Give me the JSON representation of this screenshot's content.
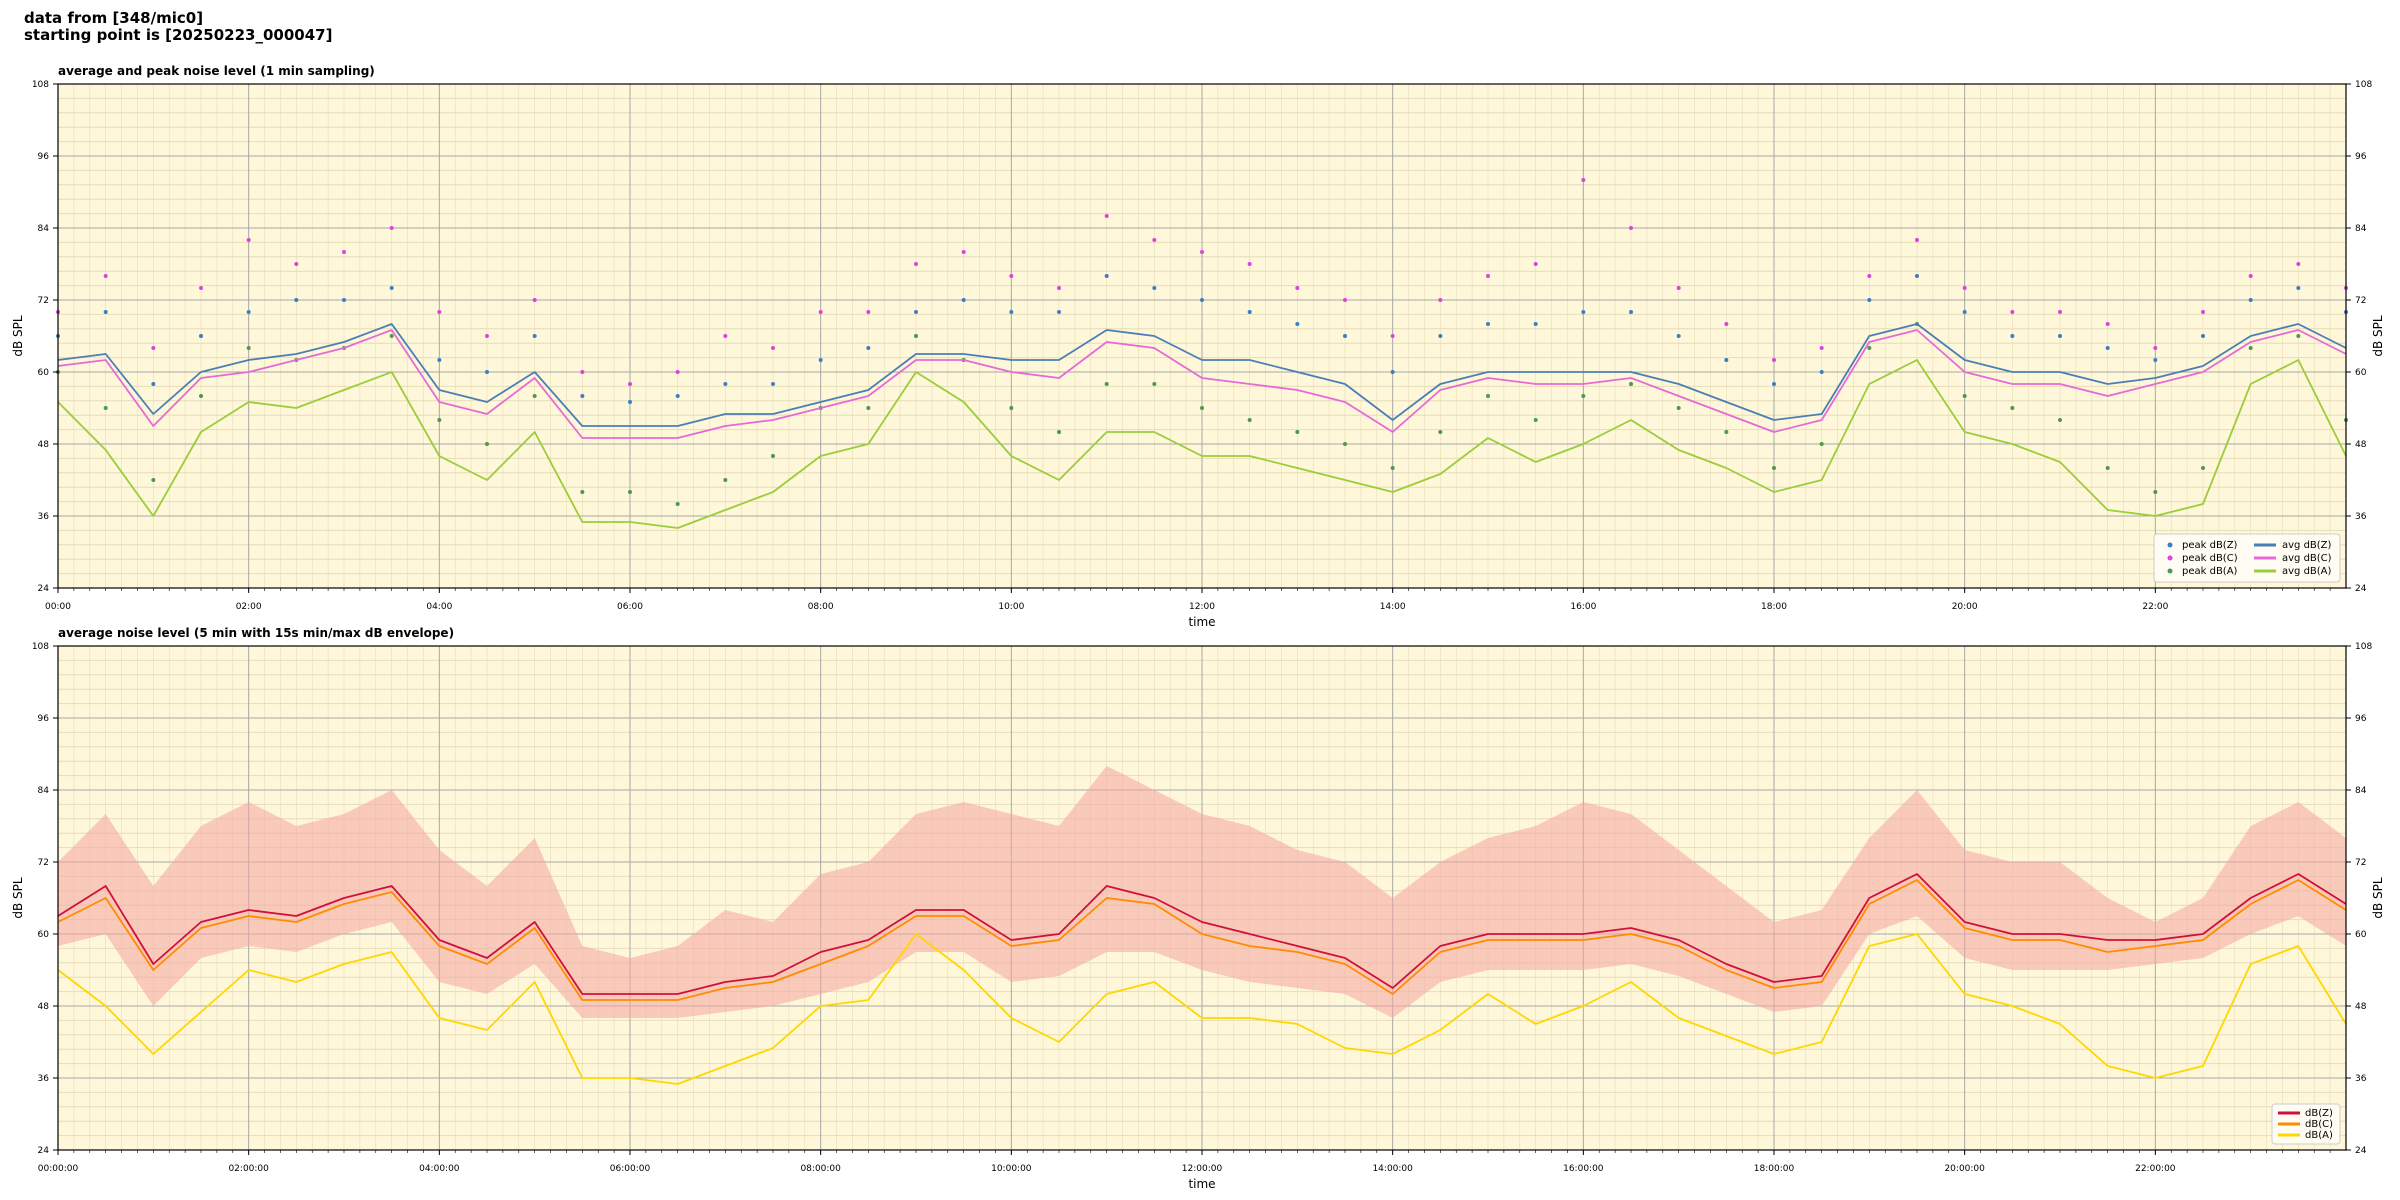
{
  "header": {
    "line1": "data from [348/mic0]",
    "line2": "starting point is [20250223_000047]"
  },
  "colors": {
    "plot_bg": "#fff7d9",
    "major_grid": "#a8a8a8",
    "minor_grid": "#e6dcb8",
    "avg_z": "#4a7fb5",
    "avg_c": "#e66ad6",
    "avg_a": "#9acd3a",
    "peak_z": "#3a7ec8",
    "peak_c": "#e040e0",
    "peak_a": "#4c9a4c",
    "z": "#d0103a",
    "c": "#ff8c00",
    "a": "#ffd700",
    "envelope": "#f4a6a0"
  },
  "chart_data": [
    {
      "type": "line",
      "id": "top",
      "title": "average and peak noise level (1 min sampling)",
      "xlabel": "time",
      "ylabel": "dB SPL",
      "ylabel_right": "dB SPL",
      "xlim": [
        0,
        24
      ],
      "ylim": [
        24,
        108
      ],
      "yticks": [
        "24",
        "36",
        "48",
        "60",
        "72",
        "84",
        "96",
        "108"
      ],
      "xticks": [
        "00:00",
        "02:00",
        "04:00",
        "06:00",
        "08:00",
        "10:00",
        "12:00",
        "14:00",
        "16:00",
        "18:00",
        "20:00",
        "22:00"
      ],
      "grid": true,
      "legend_position": "bottom-right",
      "legend": [
        {
          "label": "peak dB(Z)",
          "kind": "marker",
          "color_key": "peak_z"
        },
        {
          "label": "peak dB(C)",
          "kind": "marker",
          "color_key": "peak_c"
        },
        {
          "label": "peak dB(A)",
          "kind": "marker",
          "color_key": "peak_a"
        },
        {
          "label": "avg dB(Z)",
          "kind": "line",
          "color_key": "avg_z"
        },
        {
          "label": "avg dB(C)",
          "kind": "line",
          "color_key": "avg_c"
        },
        {
          "label": "avg dB(A)",
          "kind": "line",
          "color_key": "avg_a"
        }
      ],
      "x": [
        0,
        0.5,
        1,
        1.5,
        2,
        2.5,
        3,
        3.5,
        4,
        4.5,
        5,
        5.5,
        6,
        6.5,
        7,
        7.5,
        8,
        8.5,
        9,
        9.5,
        10,
        10.5,
        11,
        11.5,
        12,
        12.5,
        13,
        13.5,
        14,
        14.5,
        15,
        15.5,
        16,
        16.5,
        17,
        17.5,
        18,
        18.5,
        19,
        19.5,
        20,
        20.5,
        21,
        21.5,
        22,
        22.5,
        23,
        23.5,
        24
      ],
      "series": [
        {
          "name": "avg dB(Z)",
          "color_key": "avg_z",
          "values": [
            62,
            63,
            53,
            60,
            62,
            63,
            65,
            68,
            57,
            55,
            60,
            51,
            51,
            51,
            53,
            53,
            55,
            57,
            63,
            63,
            62,
            62,
            67,
            66,
            62,
            62,
            60,
            58,
            52,
            58,
            60,
            60,
            60,
            60,
            58,
            55,
            52,
            53,
            66,
            68,
            62,
            60,
            60,
            58,
            59,
            61,
            66,
            68,
            64
          ]
        },
        {
          "name": "avg dB(C)",
          "color_key": "avg_c",
          "values": [
            61,
            62,
            51,
            59,
            60,
            62,
            64,
            67,
            55,
            53,
            59,
            49,
            49,
            49,
            51,
            52,
            54,
            56,
            62,
            62,
            60,
            59,
            65,
            64,
            59,
            58,
            57,
            55,
            50,
            57,
            59,
            58,
            58,
            59,
            56,
            53,
            50,
            52,
            65,
            67,
            60,
            58,
            58,
            56,
            58,
            60,
            65,
            67,
            63
          ]
        },
        {
          "name": "avg dB(A)",
          "color_key": "avg_a",
          "values": [
            55,
            47,
            36,
            50,
            55,
            54,
            57,
            60,
            46,
            42,
            50,
            35,
            35,
            34,
            37,
            40,
            46,
            48,
            60,
            55,
            46,
            42,
            50,
            50,
            46,
            46,
            44,
            42,
            40,
            43,
            49,
            45,
            48,
            52,
            47,
            44,
            40,
            42,
            58,
            62,
            50,
            48,
            45,
            37,
            36,
            38,
            58,
            62,
            46
          ]
        }
      ],
      "peaks": [
        {
          "name": "peak dB(Z)",
          "color_key": "peak_z",
          "values": [
            66,
            70,
            58,
            66,
            70,
            72,
            72,
            74,
            62,
            60,
            66,
            56,
            55,
            56,
            58,
            58,
            62,
            64,
            70,
            72,
            70,
            70,
            76,
            74,
            72,
            70,
            68,
            66,
            60,
            66,
            68,
            68,
            70,
            70,
            66,
            62,
            58,
            60,
            72,
            76,
            70,
            66,
            66,
            64,
            62,
            66,
            72,
            74,
            70
          ]
        },
        {
          "name": "peak dB(C)",
          "color_key": "peak_c",
          "values": [
            70,
            76,
            64,
            74,
            82,
            78,
            80,
            84,
            70,
            66,
            72,
            60,
            58,
            60,
            66,
            64,
            70,
            70,
            78,
            80,
            76,
            74,
            86,
            82,
            80,
            78,
            74,
            72,
            66,
            72,
            76,
            78,
            92,
            84,
            74,
            68,
            62,
            64,
            76,
            82,
            74,
            70,
            70,
            68,
            64,
            70,
            76,
            78,
            74
          ]
        },
        {
          "name": "peak dB(A)",
          "color_key": "peak_a",
          "values": [
            60,
            54,
            42,
            56,
            64,
            62,
            64,
            66,
            52,
            48,
            56,
            40,
            40,
            38,
            42,
            46,
            54,
            54,
            66,
            62,
            54,
            50,
            58,
            58,
            54,
            52,
            50,
            48,
            44,
            50,
            56,
            52,
            56,
            58,
            54,
            50,
            44,
            48,
            64,
            68,
            56,
            54,
            52,
            44,
            40,
            44,
            64,
            66,
            52
          ]
        }
      ]
    },
    {
      "type": "line",
      "id": "bottom",
      "title": "average noise level (5 min with 15s min/max dB envelope)",
      "xlabel": "time",
      "ylabel": "dB SPL",
      "ylabel_right": "dB SPL",
      "xlim": [
        0,
        24
      ],
      "ylim": [
        24,
        108
      ],
      "yticks": [
        "24",
        "36",
        "48",
        "60",
        "72",
        "84",
        "96",
        "108"
      ],
      "xticks": [
        "00:00:00",
        "02:00:00",
        "04:00:00",
        "06:00:00",
        "08:00:00",
        "10:00:00",
        "12:00:00",
        "14:00:00",
        "16:00:00",
        "18:00:00",
        "20:00:00",
        "22:00:00"
      ],
      "grid": true,
      "legend_position": "bottom-right",
      "legend": [
        {
          "label": "dB(Z)",
          "kind": "line",
          "color_key": "z"
        },
        {
          "label": "dB(C)",
          "kind": "line",
          "color_key": "c"
        },
        {
          "label": "dB(A)",
          "kind": "line",
          "color_key": "a"
        }
      ],
      "x": [
        0,
        0.5,
        1,
        1.5,
        2,
        2.5,
        3,
        3.5,
        4,
        4.5,
        5,
        5.5,
        6,
        6.5,
        7,
        7.5,
        8,
        8.5,
        9,
        9.5,
        10,
        10.5,
        11,
        11.5,
        12,
        12.5,
        13,
        13.5,
        14,
        14.5,
        15,
        15.5,
        16,
        16.5,
        17,
        17.5,
        18,
        18.5,
        19,
        19.5,
        20,
        20.5,
        21,
        21.5,
        22,
        22.5,
        23,
        23.5,
        24
      ],
      "series": [
        {
          "name": "dB(Z)",
          "color_key": "z",
          "values": [
            63,
            68,
            55,
            62,
            64,
            63,
            66,
            68,
            59,
            56,
            62,
            50,
            50,
            50,
            52,
            53,
            57,
            59,
            64,
            64,
            59,
            60,
            68,
            66,
            62,
            60,
            58,
            56,
            51,
            58,
            60,
            60,
            60,
            61,
            59,
            55,
            52,
            53,
            66,
            70,
            62,
            60,
            60,
            59,
            59,
            60,
            66,
            70,
            65
          ]
        },
        {
          "name": "dB(C)",
          "color_key": "c",
          "values": [
            62,
            66,
            54,
            61,
            63,
            62,
            65,
            67,
            58,
            55,
            61,
            49,
            49,
            49,
            51,
            52,
            55,
            58,
            63,
            63,
            58,
            59,
            66,
            65,
            60,
            58,
            57,
            55,
            50,
            57,
            59,
            59,
            59,
            60,
            58,
            54,
            51,
            52,
            65,
            69,
            61,
            59,
            59,
            57,
            58,
            59,
            65,
            69,
            64
          ]
        },
        {
          "name": "dB(A)",
          "color_key": "a",
          "values": [
            54,
            48,
            40,
            47,
            54,
            52,
            55,
            57,
            46,
            44,
            52,
            36,
            36,
            35,
            38,
            41,
            48,
            49,
            60,
            54,
            46,
            42,
            50,
            52,
            46,
            46,
            45,
            41,
            40,
            44,
            50,
            45,
            48,
            52,
            46,
            43,
            40,
            42,
            58,
            60,
            50,
            48,
            45,
            38,
            36,
            38,
            55,
            58,
            45
          ]
        }
      ],
      "envelope": {
        "color_key": "envelope",
        "lower": [
          58,
          60,
          48,
          56,
          58,
          57,
          60,
          62,
          52,
          50,
          55,
          46,
          46,
          46,
          47,
          48,
          50,
          52,
          57,
          57,
          52,
          53,
          57,
          57,
          54,
          52,
          51,
          50,
          46,
          52,
          54,
          54,
          54,
          55,
          53,
          50,
          47,
          48,
          60,
          63,
          56,
          54,
          54,
          54,
          55,
          56,
          60,
          63,
          58
        ],
        "upper": [
          72,
          80,
          68,
          78,
          82,
          78,
          80,
          84,
          74,
          68,
          76,
          58,
          56,
          58,
          64,
          62,
          70,
          72,
          80,
          82,
          80,
          78,
          88,
          84,
          80,
          78,
          74,
          72,
          66,
          72,
          76,
          78,
          82,
          80,
          74,
          68,
          62,
          64,
          76,
          84,
          74,
          72,
          72,
          66,
          62,
          66,
          78,
          82,
          76
        ]
      }
    }
  ]
}
